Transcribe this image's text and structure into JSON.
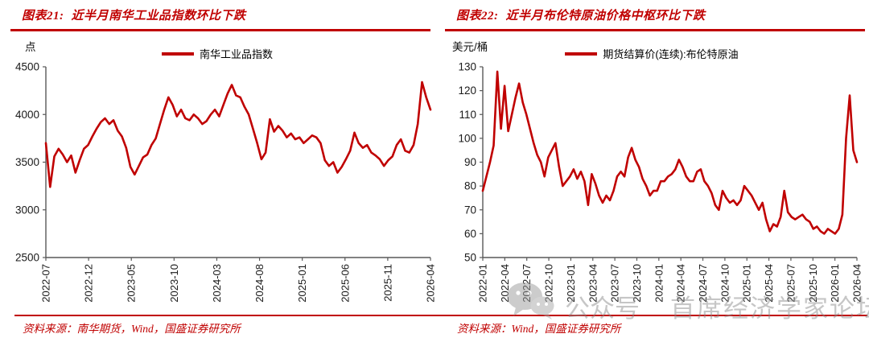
{
  "colors": {
    "accent": "#C00000",
    "series_line": "#C00000",
    "axis_line": "#595959",
    "tick_text": "#1A1A1A",
    "watermark_gray": "#8F8F8F"
  },
  "watermark": {
    "icon": "wechat-bubbles-icon",
    "label_1": "公众号",
    "label_2": "首席经济学家论坛"
  },
  "chart_data": [
    {
      "type": "line",
      "figure_label": "图表21:",
      "title": "近半月南华工业品指数环比下跌",
      "unit": "点",
      "legend": "南华工业品指数",
      "source": "资料来源：南华期货，Wind，国盛证券研究所",
      "grid": false,
      "legend_position": "top-center",
      "x_axis": {
        "start": "2022-07",
        "end": "2026-04",
        "ticks": [
          "2022-07",
          "2022-12",
          "2023-05",
          "2023-10",
          "2024-03",
          "2024-08",
          "2025-01",
          "2025-06",
          "2025-11",
          "2026-04"
        ]
      },
      "y_axis": {
        "range": [
          2500,
          4500
        ],
        "ticks": [
          2500,
          3000,
          3500,
          4000,
          4500
        ]
      },
      "series": [
        {
          "name": "南华工业品指数",
          "color": "#C00000",
          "sampling": "semi-monthly from 2022-07 to 2026-04",
          "values": [
            3700,
            3240,
            3560,
            3640,
            3580,
            3500,
            3570,
            3390,
            3520,
            3640,
            3680,
            3770,
            3850,
            3920,
            3960,
            3900,
            3940,
            3830,
            3770,
            3650,
            3450,
            3370,
            3460,
            3550,
            3580,
            3680,
            3750,
            3900,
            4050,
            4180,
            4100,
            3980,
            4050,
            3960,
            3940,
            4000,
            3960,
            3900,
            3930,
            4000,
            4050,
            3980,
            4100,
            4220,
            4310,
            4200,
            4180,
            4080,
            4000,
            3850,
            3700,
            3530,
            3600,
            3950,
            3820,
            3880,
            3830,
            3760,
            3800,
            3740,
            3760,
            3700,
            3740,
            3780,
            3760,
            3700,
            3520,
            3460,
            3500,
            3390,
            3450,
            3530,
            3620,
            3810,
            3700,
            3650,
            3680,
            3600,
            3570,
            3530,
            3460,
            3520,
            3560,
            3680,
            3740,
            3620,
            3600,
            3680,
            3900,
            4340,
            4180,
            4050
          ]
        }
      ]
    },
    {
      "type": "line",
      "figure_label": "图表22:",
      "title": "近半月布伦特原油价格中枢环比下跌",
      "unit": "美元/桶",
      "legend": "期货结算价(连续):布伦特原油",
      "source": "资料来源：Wind，国盛证券研究所",
      "grid": false,
      "legend_position": "top-center",
      "x_axis": {
        "start": "2022-01",
        "end": "2026-04",
        "ticks": [
          "2022-01",
          "2022-04",
          "2022-07",
          "2022-10",
          "2023-01",
          "2023-04",
          "2023-07",
          "2023-10",
          "2024-01",
          "2024-04",
          "2024-07",
          "2024-10",
          "2025-01",
          "2025-04",
          "2025-07",
          "2025-10",
          "2026-01",
          "2026-04"
        ]
      },
      "y_axis": {
        "range": [
          50,
          130
        ],
        "ticks": [
          50,
          60,
          70,
          80,
          90,
          100,
          110,
          120,
          130
        ]
      },
      "series": [
        {
          "name": "期货结算价(连续):布伦特原油",
          "color": "#C00000",
          "sampling": "semi-monthly from 2022-01 to 2026-04",
          "values": [
            78,
            84,
            90,
            97,
            128,
            104,
            122,
            103,
            110,
            117,
            123,
            115,
            110,
            104,
            98,
            93,
            90,
            84,
            92,
            95,
            98,
            88,
            80,
            82,
            84,
            87,
            83,
            86,
            82,
            72,
            85,
            81,
            76,
            73,
            76,
            74,
            78,
            84,
            86,
            84,
            92,
            96,
            91,
            88,
            83,
            80,
            76,
            78,
            78,
            82,
            82,
            84,
            85,
            87,
            91,
            88,
            84,
            82,
            82,
            86,
            87,
            82,
            80,
            77,
            72,
            70,
            78,
            75,
            73,
            74,
            72,
            74,
            80,
            78,
            76,
            73,
            70,
            73,
            66,
            61,
            64,
            63,
            67,
            78,
            69,
            67,
            66,
            67,
            68,
            66,
            65,
            62,
            63,
            61,
            60,
            62,
            61,
            60,
            62,
            68,
            100,
            118,
            95,
            90
          ]
        }
      ]
    }
  ]
}
